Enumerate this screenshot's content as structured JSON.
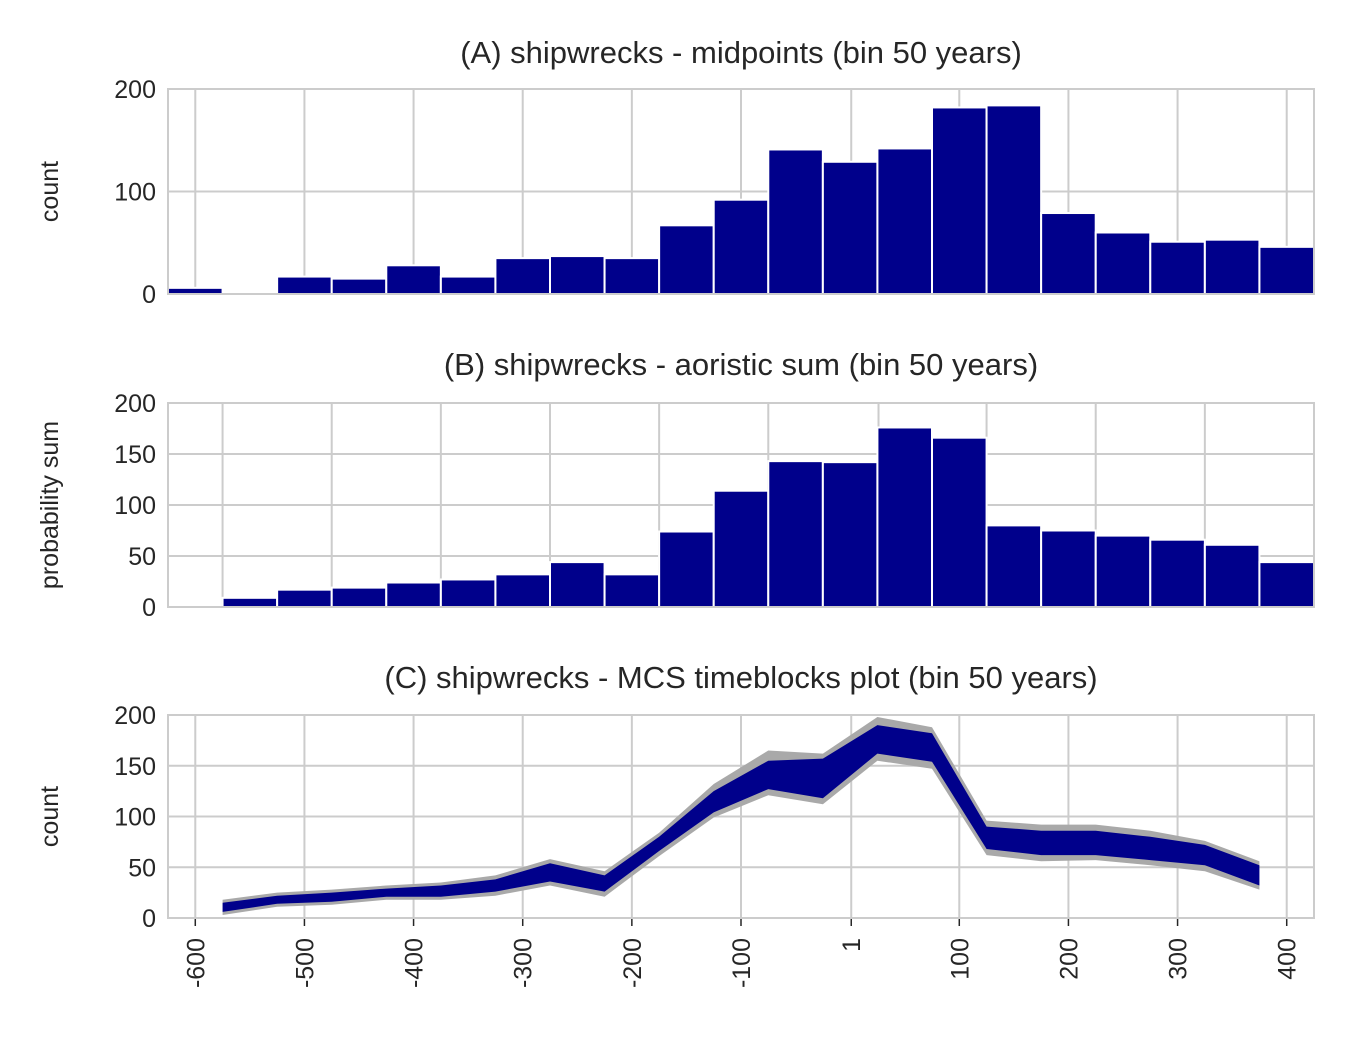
{
  "colors": {
    "bar": "#00008b",
    "band_outer": "#a9a9a9",
    "grid": "#cccccc",
    "text": "#262626"
  },
  "chart_data": [
    {
      "type": "bar",
      "title": "(A) shipwrecks - midpoints (bin 50 years)",
      "xlabel": "",
      "ylabel": "count",
      "ylim": [
        0,
        200
      ],
      "yticks": [
        "0",
        "100",
        "200"
      ],
      "xlim": [
        -625,
        425
      ],
      "grid": true,
      "bin_width": 50,
      "bins": [
        {
          "start": -625,
          "value": 6
        },
        {
          "start": -575,
          "value": 0
        },
        {
          "start": -525,
          "value": 17
        },
        {
          "start": -475,
          "value": 15
        },
        {
          "start": -425,
          "value": 28
        },
        {
          "start": -375,
          "value": 17
        },
        {
          "start": -325,
          "value": 35
        },
        {
          "start": -275,
          "value": 37
        },
        {
          "start": -225,
          "value": 35
        },
        {
          "start": -175,
          "value": 67
        },
        {
          "start": -125,
          "value": 92
        },
        {
          "start": -75,
          "value": 141
        },
        {
          "start": -25,
          "value": 129
        },
        {
          "start": 25,
          "value": 142
        },
        {
          "start": 75,
          "value": 182
        },
        {
          "start": 125,
          "value": 184
        },
        {
          "start": 175,
          "value": 79
        },
        {
          "start": 225,
          "value": 60
        },
        {
          "start": 275,
          "value": 51
        },
        {
          "start": 325,
          "value": 53
        },
        {
          "start": 375,
          "value": 46
        }
      ]
    },
    {
      "type": "bar",
      "title": "(B) shipwrecks - aoristic sum (bin 50 years)",
      "xlabel": "",
      "ylabel": "probability sum",
      "ylim": [
        0,
        200
      ],
      "yticks": [
        "0",
        "50",
        "100",
        "150",
        "200"
      ],
      "xlim": [
        -650,
        400
      ],
      "grid": true,
      "bin_width": 50,
      "bins": [
        {
          "start": -600,
          "value": 9
        },
        {
          "start": -550,
          "value": 17
        },
        {
          "start": -500,
          "value": 19
        },
        {
          "start": -450,
          "value": 24
        },
        {
          "start": -400,
          "value": 27
        },
        {
          "start": -350,
          "value": 32
        },
        {
          "start": -300,
          "value": 44
        },
        {
          "start": -250,
          "value": 32
        },
        {
          "start": -200,
          "value": 74
        },
        {
          "start": -150,
          "value": 114
        },
        {
          "start": -100,
          "value": 143
        },
        {
          "start": -50,
          "value": 142
        },
        {
          "start": 0,
          "value": 176
        },
        {
          "start": 50,
          "value": 166
        },
        {
          "start": 100,
          "value": 80
        },
        {
          "start": 150,
          "value": 75
        },
        {
          "start": 200,
          "value": 70
        },
        {
          "start": 250,
          "value": 66
        },
        {
          "start": 300,
          "value": 61
        },
        {
          "start": 350,
          "value": 44
        }
      ]
    },
    {
      "type": "area",
      "title": "(C) shipwrecks - MCS timeblocks plot (bin 50 years)",
      "xlabel": "",
      "ylabel": "count",
      "ylim": [
        0,
        200
      ],
      "yticks": [
        "0",
        "50",
        "100",
        "150",
        "200"
      ],
      "xlim": [
        -625,
        425
      ],
      "xticks": [
        "-600",
        "-500",
        "-400",
        "-300",
        "-200",
        "-100",
        "1",
        "100",
        "200",
        "300",
        "400"
      ],
      "grid": true,
      "x": [
        -575,
        -525,
        -475,
        -425,
        -375,
        -325,
        -275,
        -225,
        -175,
        -125,
        -75,
        -25,
        25,
        75,
        125,
        175,
        225,
        275,
        325,
        375
      ],
      "inner_upper": [
        15,
        22,
        25,
        29,
        32,
        38,
        54,
        42,
        80,
        125,
        155,
        157,
        190,
        182,
        90,
        86,
        86,
        80,
        72,
        52
      ],
      "inner_lower": [
        6,
        14,
        16,
        21,
        21,
        26,
        36,
        26,
        66,
        104,
        127,
        118,
        162,
        154,
        68,
        62,
        62,
        57,
        52,
        32
      ],
      "outer_upper": [
        18,
        25,
        28,
        32,
        35,
        42,
        58,
        46,
        84,
        132,
        165,
        162,
        198,
        188,
        96,
        92,
        92,
        86,
        76,
        56
      ],
      "outer_lower": [
        3,
        11,
        13,
        18,
        18,
        22,
        32,
        21,
        61,
        99,
        121,
        112,
        155,
        147,
        62,
        56,
        57,
        52,
        46,
        28
      ]
    }
  ]
}
